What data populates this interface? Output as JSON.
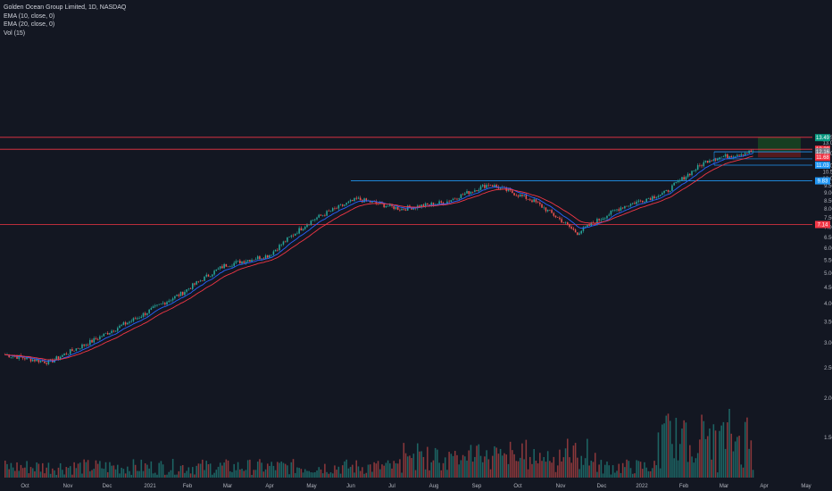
{
  "legend": {
    "symbol_line": "Golden Ocean Group Limited, 1D, NASDAQ",
    "ema10": "EMA (10, close, 0)",
    "ema20": "EMA (20, close, 0)",
    "vol": "Vol (15)"
  },
  "colors": {
    "background": "#131722",
    "up": "#26a69a",
    "down": "#ef5350",
    "ema10": "#2962ff",
    "ema20": "#f23645",
    "level_red": "#f23645",
    "level_blue": "#2196f3",
    "target_zone": "#1b5e20",
    "stop_zone": "#7f1d1d",
    "grid": "#2a2e39"
  },
  "chart_data": {
    "type": "candlestick",
    "x_ticks": [
      "Oct",
      "Nov",
      "Dec",
      "2021",
      "Feb",
      "Mar",
      "Apr",
      "May",
      "Jun",
      "Jul",
      "Aug",
      "Sep",
      "Oct",
      "Nov",
      "Dec",
      "2022",
      "Feb",
      "Mar",
      "Apr",
      "May"
    ],
    "y_ticks": [
      "1.00",
      "1.50",
      "2.00",
      "2.50",
      "3.00",
      "3.50",
      "4.00",
      "4.50",
      "5.00",
      "5.50",
      "6.00",
      "6.50",
      "7.00",
      "7.50",
      "8.00",
      "8.50",
      "9.00",
      "9.50",
      "10.00",
      "10.50",
      "11.00",
      "12.00",
      "13.00",
      "13.50"
    ],
    "y_scale": "log",
    "price_path": [
      {
        "month": "Oct 2020",
        "price": 2.75
      },
      {
        "month": "Nov 2020",
        "price": 2.6
      },
      {
        "month": "Dec 2020",
        "price": 3.05
      },
      {
        "month": "Jan 2021",
        "price": 3.6
      },
      {
        "month": "Feb 2021",
        "price": 4.3
      },
      {
        "month": "Mar 2021",
        "price": 5.3
      },
      {
        "month": "Apr 2021",
        "price": 5.7
      },
      {
        "month": "May 2021",
        "price": 7.4
      },
      {
        "month": "Jun 2021",
        "price": 8.6
      },
      {
        "month": "Jul 2021",
        "price": 8.0
      },
      {
        "month": "Aug 2021",
        "price": 8.4
      },
      {
        "month": "Sep 2021",
        "price": 9.6
      },
      {
        "month": "Oct 2021",
        "price": 8.5
      },
      {
        "month": "Nov 2021",
        "price": 6.7
      },
      {
        "month": "Dec 2021",
        "price": 8.1
      },
      {
        "month": "Jan 2022",
        "price": 9.0
      },
      {
        "month": "Feb 2022",
        "price": 11.5
      },
      {
        "month": "Mar 2022",
        "price": 12.2
      }
    ],
    "levels": [
      {
        "label": "13.52",
        "value": 13.52,
        "color": "#f23645"
      },
      {
        "label": "12.39",
        "value": 12.39,
        "color": "#f23645"
      },
      {
        "label": "12.16",
        "value": 12.16,
        "color": "#2196f3"
      },
      {
        "label": "11.03",
        "value": 11.03,
        "color": "#2196f3"
      },
      {
        "label": "9.83",
        "value": 9.83,
        "color": "#2196f3"
      },
      {
        "label": "7.14",
        "value": 7.14,
        "color": "#f23645"
      }
    ],
    "price_tags": [
      {
        "label": "13.49",
        "value": 13.49,
        "color": "#089981"
      },
      {
        "label": "12.39",
        "value": 12.39,
        "color": "#f23645"
      },
      {
        "label": "12.16",
        "value": 12.16,
        "color": "#787b86"
      },
      {
        "label": "11.68",
        "value": 11.68,
        "color": "#f23645"
      },
      {
        "label": "11.03",
        "value": 11.03,
        "color": "#2196f3"
      },
      {
        "label": "9.83",
        "value": 9.83,
        "color": "#2196f3"
      },
      {
        "label": "7.14",
        "value": 7.14,
        "color": "#f23645"
      }
    ],
    "position_tool": {
      "target": 13.52,
      "entry": 12.16,
      "stop": 11.68
    },
    "grid": false,
    "legend_position": "top-left"
  }
}
